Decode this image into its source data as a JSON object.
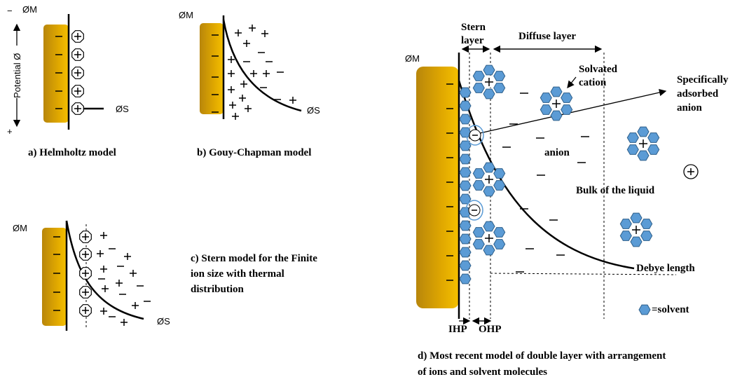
{
  "panels": [
    {
      "caption": "a) Helmholtz model",
      "phi_m": "ØM",
      "phi_s": "ØS"
    },
    {
      "caption": "b) Gouy-Chapman model",
      "phi_m": "ØM",
      "phi_s": "ØS"
    },
    {
      "caption": [
        "c) Stern model for the Finite",
        "ion size with thermal",
        "distribution"
      ],
      "phi_m": "ØM",
      "phi_s": "ØS"
    },
    {
      "caption": [
        "d) Most recent model of double layer with arrangement",
        "of ions and solvent molecules"
      ],
      "phi_m": "ØM"
    }
  ],
  "potential_axis": {
    "label": "Potential Ø",
    "top": "−",
    "bottom": "+"
  },
  "panel_d_labels": {
    "stern": [
      "Stern",
      "layer"
    ],
    "diffuse": "Diffuse layer",
    "solvated": [
      "Solvated",
      "cation"
    ],
    "adsorbed": [
      "Specifically",
      "adsorbed",
      "anion"
    ],
    "anion": "anion",
    "bulk": "Bulk of the liquid",
    "debye": "Debye length",
    "solvent": "=solvent",
    "ihp": "IHP",
    "ohp": "OHP"
  }
}
